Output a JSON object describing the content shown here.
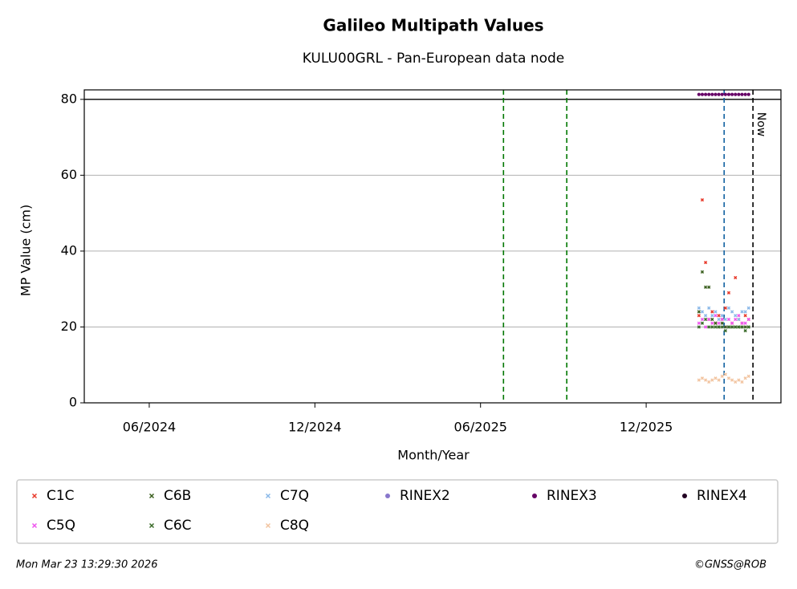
{
  "chart_data": {
    "type": "scatter",
    "title": "Galileo Multipath Values",
    "subtitle": "KULU00GRL - Pan-European data node",
    "x_label": "Month/Year",
    "y_label": "MP Value (cm)",
    "xlim": [
      2024.2206,
      2026.3235
    ],
    "ylim": [
      0,
      82.5
    ],
    "xticks": [
      {
        "value": 2024.4167,
        "label": "06/2024"
      },
      {
        "value": 2024.9167,
        "label": "12/2024"
      },
      {
        "value": 2025.4167,
        "label": "06/2025"
      },
      {
        "value": 2025.9167,
        "label": "12/2025"
      }
    ],
    "yticks": [
      0,
      20,
      40,
      60,
      80
    ],
    "grid": true,
    "hlines": [
      {
        "value": 80,
        "color": "#000000"
      }
    ],
    "vlines": [
      {
        "value": 2025.486,
        "color": "#007700"
      },
      {
        "value": 2025.677,
        "color": "#007700"
      },
      {
        "value": 2026.152,
        "color": "#1060a0"
      }
    ],
    "now_line": {
      "value": 2026.239,
      "label": "Now",
      "color": "#000000"
    },
    "x": [
      2026.076,
      2026.086,
      2026.096,
      2026.106,
      2026.116,
      2026.126,
      2026.136,
      2026.146,
      2026.156,
      2026.166,
      2026.176,
      2026.186,
      2026.196,
      2026.206,
      2026.216,
      2026.226
    ],
    "series": [
      {
        "name": "C1C",
        "color": "#e8392a",
        "marker": "x",
        "values": [
          23,
          53.5,
          37,
          22,
          24,
          21,
          23,
          22,
          25,
          29,
          21,
          33,
          22,
          21,
          23,
          22
        ]
      },
      {
        "name": "C5Q",
        "color": "#ee55ee",
        "marker": "x",
        "values": [
          21,
          22,
          20,
          22,
          21,
          23,
          21,
          22,
          20,
          22,
          21,
          22,
          23,
          21,
          21,
          22
        ]
      },
      {
        "name": "C6B",
        "color": "#3a5f1e",
        "marker": "x",
        "values": [
          24,
          34.5,
          30.5,
          30.5,
          22,
          21,
          20,
          21,
          20,
          20,
          20,
          20,
          20,
          20,
          20,
          20
        ]
      },
      {
        "name": "C6C",
        "color": "#3a6b2a",
        "marker": "x",
        "values": [
          20,
          21,
          22,
          20,
          20,
          20,
          20,
          20,
          19,
          20,
          20,
          20,
          20,
          20,
          19,
          20
        ]
      },
      {
        "name": "C7Q",
        "color": "#8ab8e8",
        "marker": "x",
        "values": [
          25,
          24,
          23,
          25,
          23,
          24,
          22,
          23,
          22,
          25,
          24,
          23,
          22,
          24,
          24,
          25
        ]
      },
      {
        "name": "C8Q",
        "color": "#f2c4a0",
        "marker": "x",
        "values": [
          6,
          6.5,
          6,
          5.5,
          6,
          6.5,
          6,
          7,
          7.5,
          6.5,
          6,
          5.5,
          6,
          5.5,
          6.5,
          7
        ]
      },
      {
        "name": "RINEX2",
        "color": "#8877cc",
        "marker": "dot",
        "values": [
          null,
          null,
          null,
          null,
          null,
          null,
          null,
          null,
          null,
          null,
          null,
          null,
          null,
          null,
          null,
          null
        ]
      },
      {
        "name": "RINEX3",
        "color": "#660066",
        "marker": "dot",
        "values": [
          81.3,
          81.3,
          81.3,
          81.3,
          81.3,
          81.3,
          81.3,
          81.3,
          81.3,
          81.3,
          81.3,
          81.3,
          81.3,
          81.3,
          81.3,
          81.3
        ]
      },
      {
        "name": "RINEX4",
        "color": "#220022",
        "marker": "dot",
        "values": [
          null,
          null,
          null,
          null,
          null,
          null,
          null,
          null,
          null,
          null,
          null,
          null,
          null,
          null,
          null,
          null
        ]
      }
    ],
    "footer_left": "Mon Mar 23 13:29:30 2026",
    "footer_right": "©GNSS@ROB"
  }
}
